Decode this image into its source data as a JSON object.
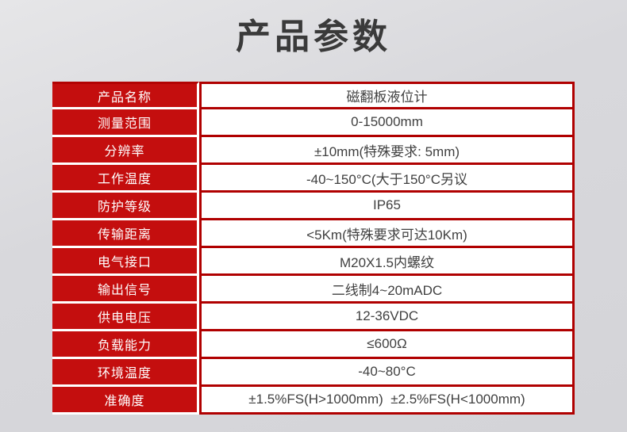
{
  "page": {
    "title": "产品参数"
  },
  "colors": {
    "label_cell_red": "#c40e0e",
    "table_border_red": "#b00000",
    "title_text": "#3a3a3a",
    "value_text": "#404040",
    "page_background": "#d8d8dc"
  },
  "table": {
    "rows": [
      {
        "label": "产品名称",
        "value": "磁翻板液位计"
      },
      {
        "label": "测量范围",
        "value": "0-15000mm"
      },
      {
        "label": "分辨率",
        "value": "±10mm(特殊要求: 5mm)"
      },
      {
        "label": "工作温度",
        "value": "-40~150°C(大于150°C另议"
      },
      {
        "label": "防护等级",
        "value": "IP65"
      },
      {
        "label": "传输距离",
        "value": "<5Km(特殊要求可达10Km)"
      },
      {
        "label": "电气接口",
        "value": "M20X1.5内螺纹"
      },
      {
        "label": "输出信号",
        "value": "二线制4~20mADC"
      },
      {
        "label": "供电电压",
        "value": "12-36VDC"
      },
      {
        "label": "负载能力",
        "value": "≤600Ω"
      },
      {
        "label": "环境温度",
        "value": "-40~80°C"
      },
      {
        "label": "准确度",
        "value": "±1.5%FS(H>1000mm)  ±2.5%FS(H<1000mm)"
      }
    ]
  }
}
